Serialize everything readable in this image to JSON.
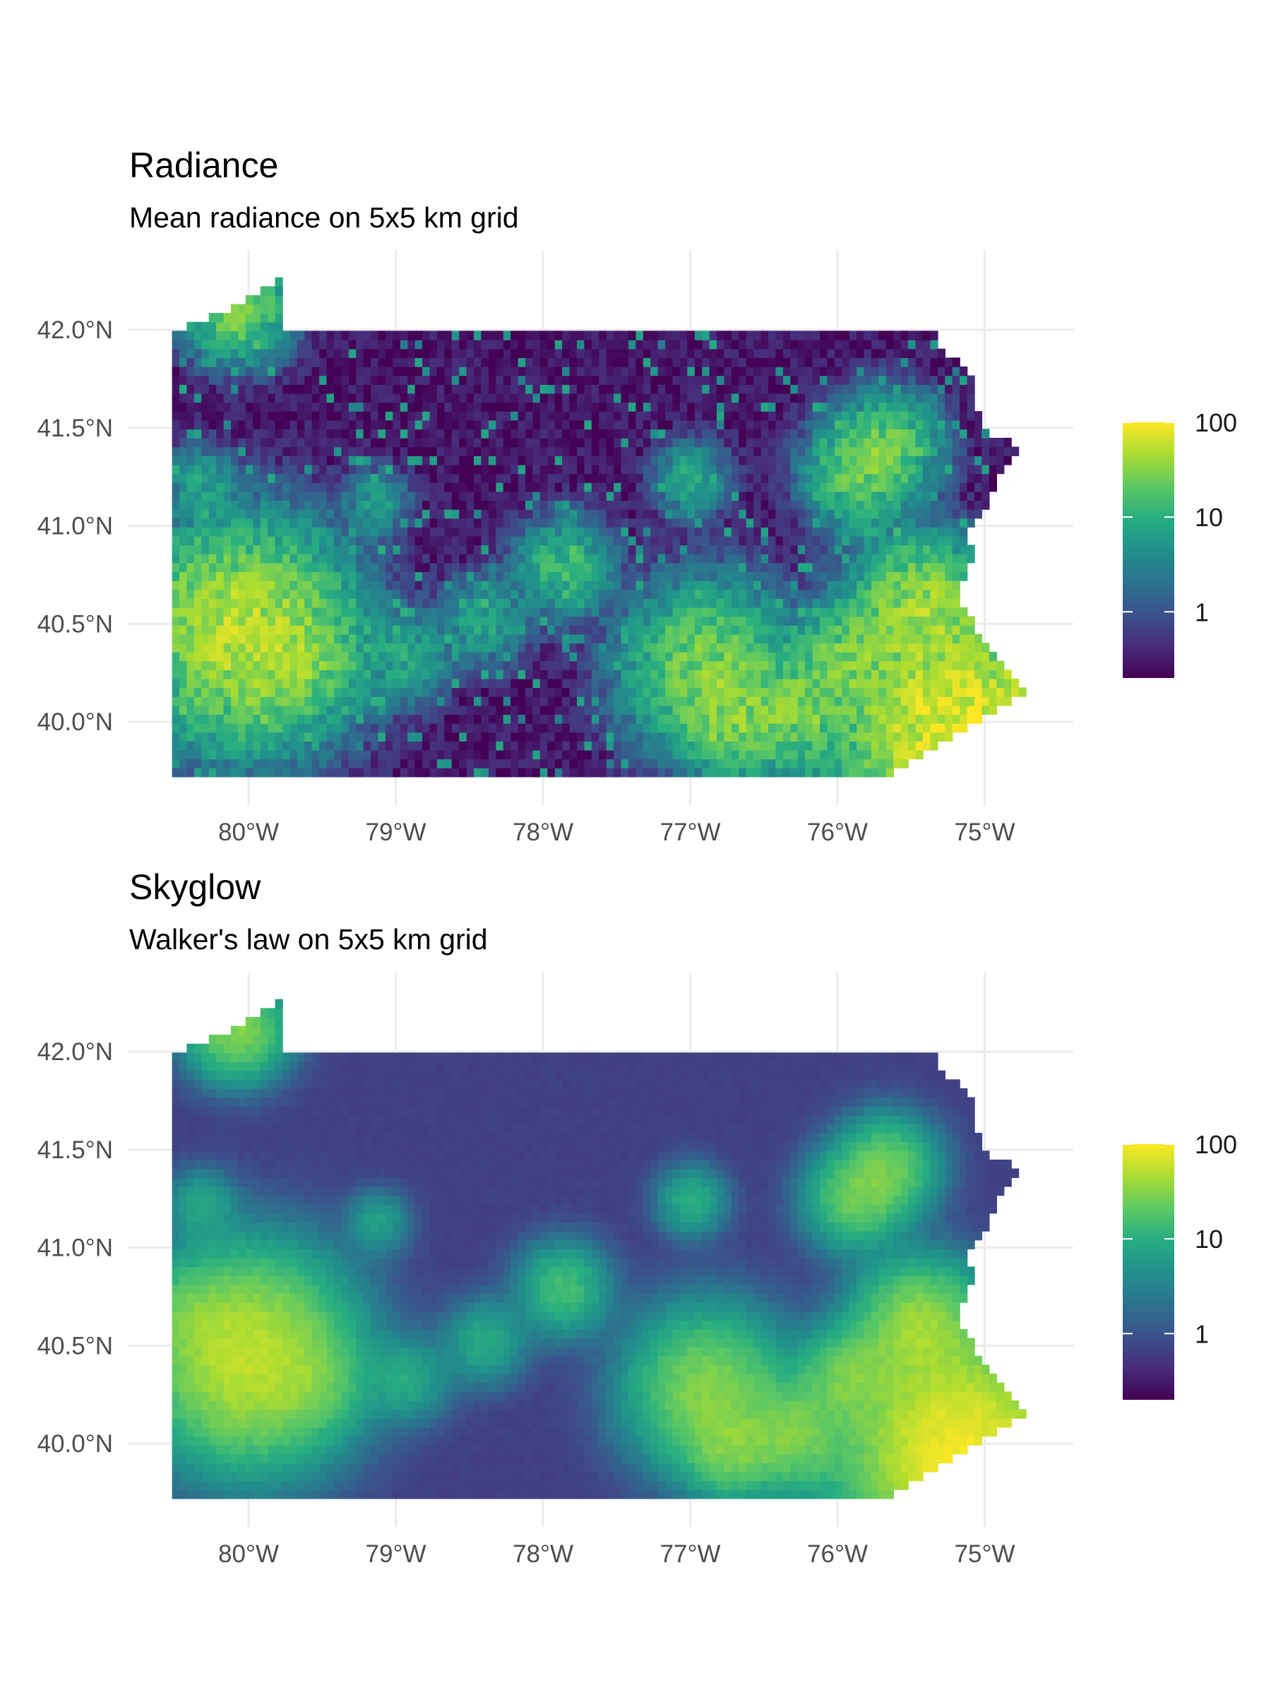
{
  "panels": [
    {
      "title": "Radiance",
      "subtitle": "Mean radiance on 5x5 km grid",
      "smooth": false,
      "legend": {
        "ticks": [
          "1",
          "10",
          "100"
        ],
        "tick_values": [
          1,
          10,
          100
        ],
        "scale": "log10",
        "range": [
          0.2,
          100
        ]
      }
    },
    {
      "title": "Skyglow",
      "subtitle": "Walker's law on 5x5 km grid",
      "smooth": true,
      "legend": {
        "ticks": [
          "1",
          "10",
          "100"
        ],
        "tick_values": [
          1,
          10,
          100
        ],
        "scale": "log10",
        "range": [
          0.2,
          100
        ]
      }
    }
  ],
  "axes": {
    "x_ticks": [
      {
        "value": -80,
        "label": "80°W"
      },
      {
        "value": -79,
        "label": "79°W"
      },
      {
        "value": -78,
        "label": "78°W"
      },
      {
        "value": -77,
        "label": "77°W"
      },
      {
        "value": -76,
        "label": "76°W"
      },
      {
        "value": -75,
        "label": "75°W"
      }
    ],
    "y_ticks": [
      {
        "value": 42.0,
        "label": "42.0°N"
      },
      {
        "value": 41.5,
        "label": "41.5°N"
      },
      {
        "value": 41.0,
        "label": "41.0°N"
      },
      {
        "value": 40.5,
        "label": "40.5°N"
      },
      {
        "value": 40.0,
        "label": "40.0°N"
      }
    ],
    "xlim": [
      -80.8,
      -74.4
    ],
    "ylim": [
      39.55,
      42.4
    ]
  },
  "map_data": {
    "region_outline_lonlat": [
      [
        -80.52,
        39.72
      ],
      [
        -80.52,
        41.98
      ],
      [
        -80.2,
        42.08
      ],
      [
        -79.76,
        42.27
      ],
      [
        -79.76,
        42.0
      ],
      [
        -75.36,
        42.0
      ],
      [
        -75.25,
        41.87
      ],
      [
        -75.08,
        41.77
      ],
      [
        -75.05,
        41.6
      ],
      [
        -74.98,
        41.48
      ],
      [
        -74.73,
        41.39
      ],
      [
        -74.84,
        41.34
      ],
      [
        -74.98,
        41.1
      ],
      [
        -75.14,
        40.97
      ],
      [
        -75.05,
        40.87
      ],
      [
        -75.2,
        40.63
      ],
      [
        -75.1,
        40.57
      ],
      [
        -75.07,
        40.45
      ],
      [
        -74.93,
        40.34
      ],
      [
        -74.73,
        40.15
      ],
      [
        -74.96,
        40.05
      ],
      [
        -75.13,
        39.96
      ],
      [
        -75.38,
        39.85
      ],
      [
        -75.45,
        39.81
      ],
      [
        -75.68,
        39.72
      ],
      [
        -80.52,
        39.72
      ]
    ],
    "light_centers": [
      {
        "lon": -80.0,
        "lat": 40.44,
        "value": 55,
        "radius_deg": 0.28
      },
      {
        "lon": -75.16,
        "lat": 39.95,
        "value": 90,
        "radius_deg": 0.3
      },
      {
        "lon": -75.45,
        "lat": 40.6,
        "value": 35,
        "radius_deg": 0.18
      },
      {
        "lon": -76.88,
        "lat": 40.27,
        "value": 30,
        "radius_deg": 0.22
      },
      {
        "lon": -76.3,
        "lat": 40.04,
        "value": 25,
        "radius_deg": 0.16
      },
      {
        "lon": -75.93,
        "lat": 40.34,
        "value": 22,
        "radius_deg": 0.14
      },
      {
        "lon": -76.73,
        "lat": 39.96,
        "value": 20,
        "radius_deg": 0.13
      },
      {
        "lon": -75.66,
        "lat": 41.41,
        "value": 22,
        "radius_deg": 0.14
      },
      {
        "lon": -75.88,
        "lat": 41.25,
        "value": 20,
        "radius_deg": 0.14
      },
      {
        "lon": -80.08,
        "lat": 42.12,
        "value": 30,
        "radius_deg": 0.14
      },
      {
        "lon": -77.86,
        "lat": 40.79,
        "value": 14,
        "radius_deg": 0.13
      },
      {
        "lon": -78.92,
        "lat": 40.33,
        "value": 8,
        "radius_deg": 0.12
      },
      {
        "lon": -78.4,
        "lat": 40.52,
        "value": 8,
        "radius_deg": 0.12
      },
      {
        "lon": -79.54,
        "lat": 40.3,
        "value": 10,
        "radius_deg": 0.14
      },
      {
        "lon": -80.4,
        "lat": 40.66,
        "value": 10,
        "radius_deg": 0.14
      },
      {
        "lon": -76.99,
        "lat": 41.24,
        "value": 9,
        "radius_deg": 0.1
      },
      {
        "lon": -80.32,
        "lat": 41.22,
        "value": 7,
        "radius_deg": 0.1
      },
      {
        "lon": -79.12,
        "lat": 41.13,
        "value": 6,
        "radius_deg": 0.09
      }
    ],
    "background_value": 0.3
  }
}
